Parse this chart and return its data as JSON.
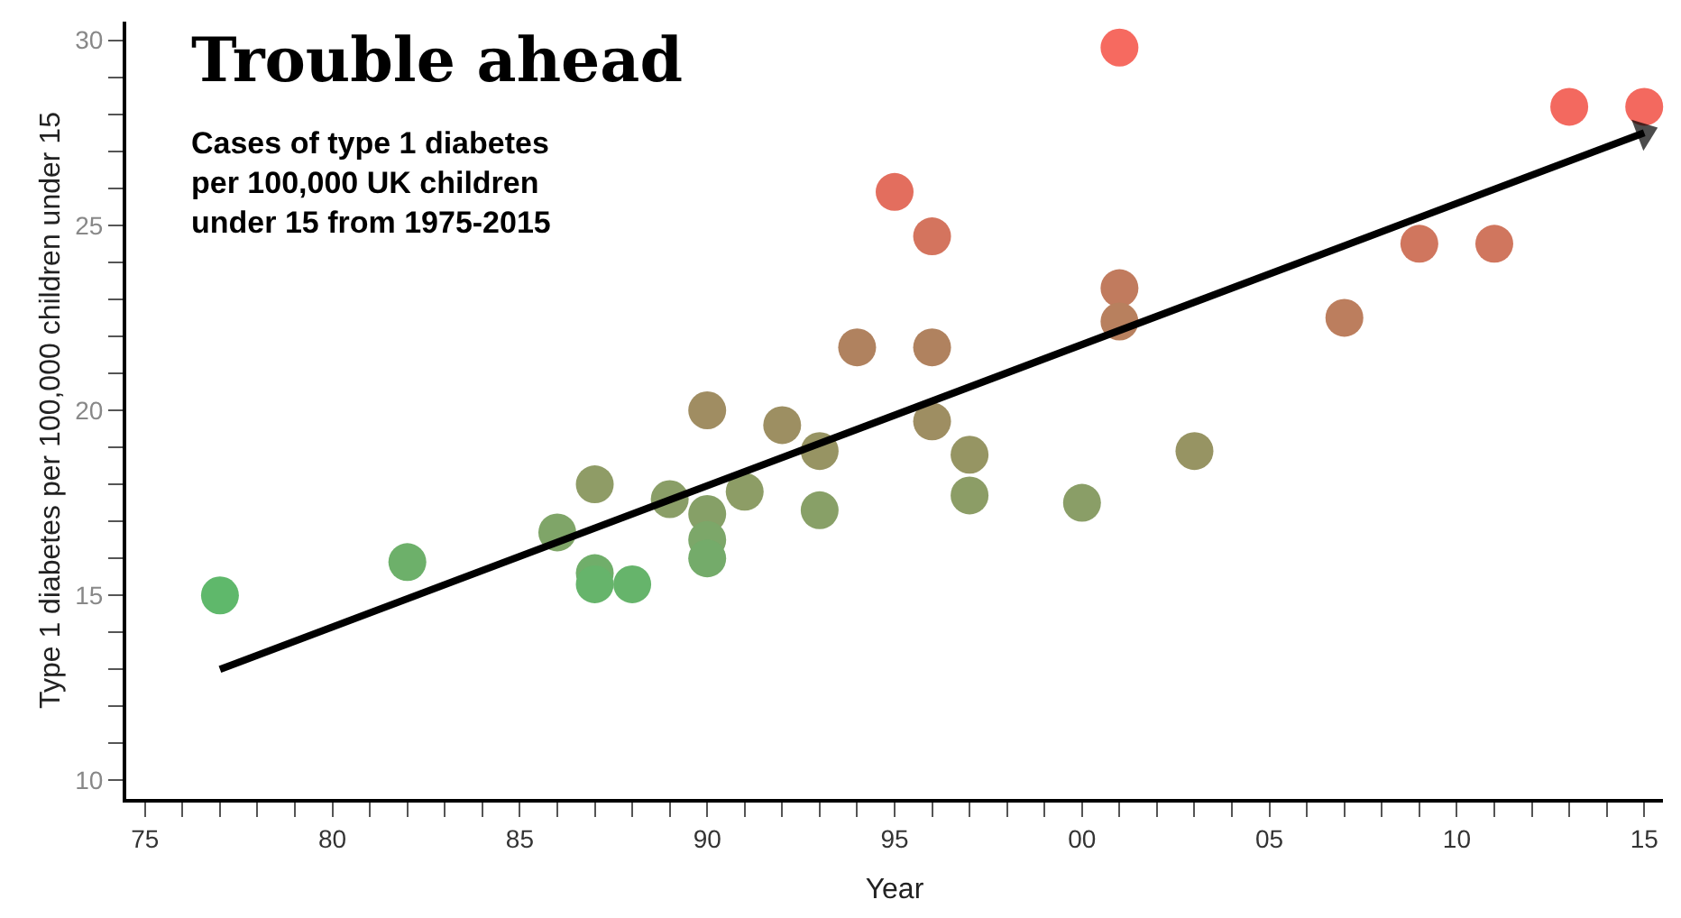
{
  "chart_data": {
    "type": "scatter",
    "title": "Trouble ahead",
    "subtitle": "Cases of type 1 diabetes\nper 100,000 UK children\nunder 15 from 1975-2015",
    "xlabel": "Year",
    "ylabel": "Type 1 diabetes per 100,000 children under 15",
    "xlim": [
      1974.5,
      2015.5
    ],
    "ylim": [
      9.5,
      30.5
    ],
    "xticks": [
      {
        "value": 1975,
        "label": "75"
      },
      {
        "value": 1976,
        "label": null
      },
      {
        "value": 1977,
        "label": null
      },
      {
        "value": 1978,
        "label": null
      },
      {
        "value": 1979,
        "label": null
      },
      {
        "value": 1980,
        "label": "80"
      },
      {
        "value": 1981,
        "label": null
      },
      {
        "value": 1982,
        "label": null
      },
      {
        "value": 1983,
        "label": null
      },
      {
        "value": 1984,
        "label": null
      },
      {
        "value": 1985,
        "label": "85"
      },
      {
        "value": 1986,
        "label": null
      },
      {
        "value": 1987,
        "label": null
      },
      {
        "value": 1988,
        "label": null
      },
      {
        "value": 1989,
        "label": null
      },
      {
        "value": 1990,
        "label": "90"
      },
      {
        "value": 1991,
        "label": null
      },
      {
        "value": 1992,
        "label": null
      },
      {
        "value": 1993,
        "label": null
      },
      {
        "value": 1994,
        "label": null
      },
      {
        "value": 1995,
        "label": "95"
      },
      {
        "value": 1996,
        "label": null
      },
      {
        "value": 1997,
        "label": null
      },
      {
        "value": 1998,
        "label": null
      },
      {
        "value": 1999,
        "label": null
      },
      {
        "value": 2000,
        "label": "00"
      },
      {
        "value": 2001,
        "label": null
      },
      {
        "value": 2002,
        "label": null
      },
      {
        "value": 2003,
        "label": null
      },
      {
        "value": 2004,
        "label": null
      },
      {
        "value": 2005,
        "label": "05"
      },
      {
        "value": 2006,
        "label": null
      },
      {
        "value": 2007,
        "label": null
      },
      {
        "value": 2008,
        "label": null
      },
      {
        "value": 2009,
        "label": null
      },
      {
        "value": 2010,
        "label": "10"
      },
      {
        "value": 2011,
        "label": null
      },
      {
        "value": 2012,
        "label": null
      },
      {
        "value": 2013,
        "label": null
      },
      {
        "value": 2014,
        "label": null
      },
      {
        "value": 2015,
        "label": "15"
      }
    ],
    "yticks": [
      10,
      {
        "value": 11,
        "label": null
      },
      {
        "value": 12,
        "label": null
      },
      {
        "value": 13,
        "label": null
      },
      {
        "value": 14,
        "label": null
      },
      15,
      {
        "value": 16,
        "label": null
      },
      {
        "value": 17,
        "label": null
      },
      {
        "value": 18,
        "label": null
      },
      {
        "value": 19,
        "label": null
      },
      20,
      {
        "value": 21,
        "label": null
      },
      {
        "value": 22,
        "label": null
      },
      {
        "value": 23,
        "label": null
      },
      {
        "value": 24,
        "label": null
      },
      25,
      {
        "value": 26,
        "label": null
      },
      {
        "value": 27,
        "label": null
      },
      {
        "value": 28,
        "label": null
      },
      {
        "value": 29,
        "label": null
      },
      30
    ],
    "series": [
      {
        "marker": "circle",
        "x": [
          1977,
          1982,
          1986,
          1987,
          1987,
          1987,
          1988,
          1989,
          1990,
          1990,
          1990,
          1990,
          1991,
          1992,
          1993,
          1993,
          1994,
          1995,
          1996,
          1996,
          1996,
          1997,
          1997,
          2000,
          2001,
          2001,
          2001,
          2003,
          2007,
          2009,
          2011,
          2013,
          2015
        ],
        "values": [
          15.0,
          15.9,
          16.7,
          18.0,
          15.6,
          15.3,
          15.3,
          17.6,
          20.0,
          17.2,
          16.5,
          16.0,
          17.8,
          19.6,
          18.9,
          17.3,
          21.7,
          25.9,
          24.7,
          21.7,
          19.7,
          18.8,
          17.7,
          17.5,
          29.8,
          23.3,
          22.4,
          18.9,
          22.5,
          24.5,
          24.5,
          28.2,
          28.2
        ],
        "colors": [
          "#5fb86b",
          "#6db06a",
          "#7fa568",
          "#8f9c66",
          "#70ae6a",
          "#66b46b",
          "#66b46b",
          "#8a9e67",
          "#a08d62",
          "#86a067",
          "#7ca769",
          "#74ab6a",
          "#8d9d66",
          "#9d8f62",
          "#979463",
          "#88a067",
          "#b0825f",
          "#e36e5e",
          "#d4745e",
          "#b0825f",
          "#9e8e62",
          "#969563",
          "#8c9d66",
          "#8a9e67",
          "#f66a60",
          "#c17b5e",
          "#b8805e",
          "#979463",
          "#bc7e5e",
          "#d0765e",
          "#d0765e",
          "#f3695f",
          "#f3695f"
        ]
      },
      {
        "type": "line",
        "x": [
          1977,
          2015
        ],
        "values": [
          13.0,
          27.5
        ],
        "color": "#000000",
        "line_style": "solid"
      }
    ]
  }
}
